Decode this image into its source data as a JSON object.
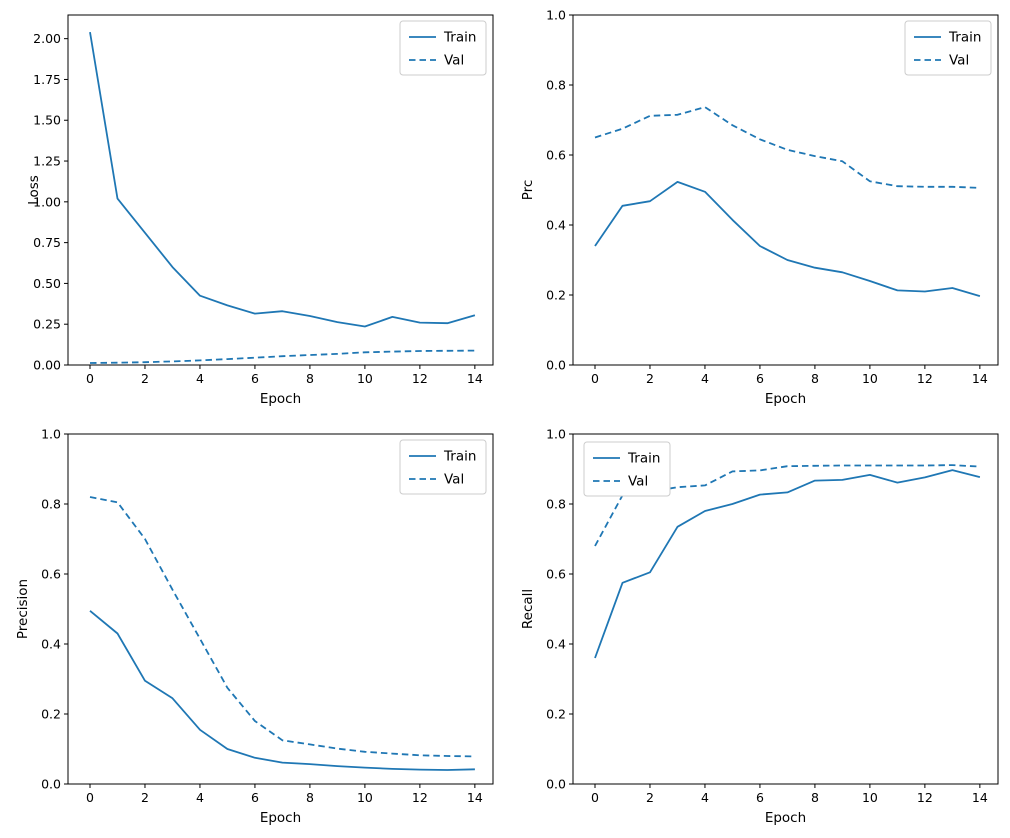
{
  "figure": {
    "background": "#ffffff",
    "description": "2x2 grid of training curves over epochs"
  },
  "style": {
    "line_color": "#1f77b4",
    "axis_color": "#000000",
    "text_color": "#000000",
    "legend_border_color": "#cccccc",
    "legend_background": "#ffffff"
  },
  "legend": {
    "train_label": "Train",
    "val_label": "Val"
  },
  "chart_data": [
    {
      "id": "loss",
      "type": "line",
      "title": "",
      "xlabel": "Epoch",
      "ylabel": "Loss",
      "x": [
        0,
        1,
        2,
        3,
        4,
        5,
        6,
        7,
        8,
        9,
        10,
        11,
        12,
        13,
        14
      ],
      "series": [
        {
          "name": "Train",
          "style": "solid",
          "values": [
            2.04,
            1.02,
            0.81,
            0.6,
            0.425,
            0.365,
            0.315,
            0.33,
            0.3,
            0.263,
            0.236,
            0.295,
            0.26,
            0.256,
            0.305
          ]
        },
        {
          "name": "Val",
          "style": "dashed",
          "values": [
            0.012,
            0.014,
            0.017,
            0.022,
            0.028,
            0.036,
            0.045,
            0.054,
            0.061,
            0.068,
            0.078,
            0.082,
            0.086,
            0.087,
            0.088
          ]
        }
      ],
      "xlim": [
        -0.8,
        14.66
      ],
      "ylim": [
        0,
        2.145
      ],
      "xticks": {
        "values": [
          0,
          2,
          4,
          6,
          8,
          10,
          12,
          14
        ],
        "labels": [
          "0",
          "2",
          "4",
          "6",
          "8",
          "10",
          "12",
          "14"
        ]
      },
      "yticks": {
        "values": [
          0,
          0.25,
          0.5,
          0.75,
          1.0,
          1.25,
          1.5,
          1.75,
          2.0
        ],
        "labels": [
          "0.00",
          "0.25",
          "0.50",
          "0.75",
          "1.00",
          "1.25",
          "1.50",
          "1.75",
          "2.00"
        ]
      },
      "grid": false,
      "legend_position": "upper-right"
    },
    {
      "id": "prc",
      "type": "line",
      "title": "",
      "xlabel": "Epoch",
      "ylabel": "Prc",
      "x": [
        0,
        1,
        2,
        3,
        4,
        5,
        6,
        7,
        8,
        9,
        10,
        11,
        12,
        13,
        14
      ],
      "series": [
        {
          "name": "Train",
          "style": "solid",
          "values": [
            0.34,
            0.455,
            0.468,
            0.523,
            0.495,
            0.415,
            0.34,
            0.3,
            0.278,
            0.265,
            0.24,
            0.213,
            0.21,
            0.22,
            0.197
          ]
        },
        {
          "name": "Val",
          "style": "dashed",
          "values": [
            0.65,
            0.675,
            0.712,
            0.715,
            0.737,
            0.685,
            0.645,
            0.615,
            0.597,
            0.582,
            0.525,
            0.511,
            0.509,
            0.509,
            0.506
          ]
        }
      ],
      "xlim": [
        -0.8,
        14.66
      ],
      "ylim": [
        0,
        1.0
      ],
      "xticks": {
        "values": [
          0,
          2,
          4,
          6,
          8,
          10,
          12,
          14
        ],
        "labels": [
          "0",
          "2",
          "4",
          "6",
          "8",
          "10",
          "12",
          "14"
        ]
      },
      "yticks": {
        "values": [
          0,
          0.2,
          0.4,
          0.6,
          0.8,
          1.0
        ],
        "labels": [
          "0.0",
          "0.2",
          "0.4",
          "0.6",
          "0.8",
          "1.0"
        ]
      },
      "grid": false,
      "legend_position": "upper-right"
    },
    {
      "id": "precision",
      "type": "line",
      "title": "",
      "xlabel": "Epoch",
      "ylabel": "Precision",
      "x": [
        0,
        1,
        2,
        3,
        4,
        5,
        6,
        7,
        8,
        9,
        10,
        11,
        12,
        13,
        14
      ],
      "series": [
        {
          "name": "Train",
          "style": "solid",
          "values": [
            0.495,
            0.43,
            0.295,
            0.245,
            0.155,
            0.1,
            0.075,
            0.061,
            0.057,
            0.051,
            0.047,
            0.043,
            0.041,
            0.04,
            0.042
          ]
        },
        {
          "name": "Val",
          "style": "dashed",
          "values": [
            0.82,
            0.805,
            0.7,
            0.555,
            0.415,
            0.275,
            0.18,
            0.125,
            0.113,
            0.101,
            0.092,
            0.087,
            0.082,
            0.08,
            0.079
          ]
        }
      ],
      "xlim": [
        -0.8,
        14.66
      ],
      "ylim": [
        0,
        1.0
      ],
      "xticks": {
        "values": [
          0,
          2,
          4,
          6,
          8,
          10,
          12,
          14
        ],
        "labels": [
          "0",
          "2",
          "4",
          "6",
          "8",
          "10",
          "12",
          "14"
        ]
      },
      "yticks": {
        "values": [
          0,
          0.2,
          0.4,
          0.6,
          0.8,
          1.0
        ],
        "labels": [
          "0.0",
          "0.2",
          "0.4",
          "0.6",
          "0.8",
          "1.0"
        ]
      },
      "grid": false,
      "legend_position": "upper-right"
    },
    {
      "id": "recall",
      "type": "line",
      "title": "",
      "xlabel": "Epoch",
      "ylabel": "Recall",
      "x": [
        0,
        1,
        2,
        3,
        4,
        5,
        6,
        7,
        8,
        9,
        10,
        11,
        12,
        13,
        14
      ],
      "series": [
        {
          "name": "Train",
          "style": "solid",
          "values": [
            0.36,
            0.575,
            0.605,
            0.735,
            0.78,
            0.8,
            0.827,
            0.833,
            0.867,
            0.869,
            0.883,
            0.861,
            0.876,
            0.897,
            0.877
          ]
        },
        {
          "name": "Val",
          "style": "dashed",
          "values": [
            0.68,
            0.825,
            0.835,
            0.848,
            0.853,
            0.893,
            0.896,
            0.908,
            0.909,
            0.91,
            0.91,
            0.91,
            0.91,
            0.911,
            0.907
          ]
        }
      ],
      "xlim": [
        -0.8,
        14.66
      ],
      "ylim": [
        0,
        1.0
      ],
      "xticks": {
        "values": [
          0,
          2,
          4,
          6,
          8,
          10,
          12,
          14
        ],
        "labels": [
          "0",
          "2",
          "4",
          "6",
          "8",
          "10",
          "12",
          "14"
        ]
      },
      "yticks": {
        "values": [
          0,
          0.2,
          0.4,
          0.6,
          0.8,
          1.0
        ],
        "labels": [
          "0.0",
          "0.2",
          "0.4",
          "0.6",
          "0.8",
          "1.0"
        ]
      },
      "grid": false,
      "legend_position": "upper-left"
    }
  ]
}
